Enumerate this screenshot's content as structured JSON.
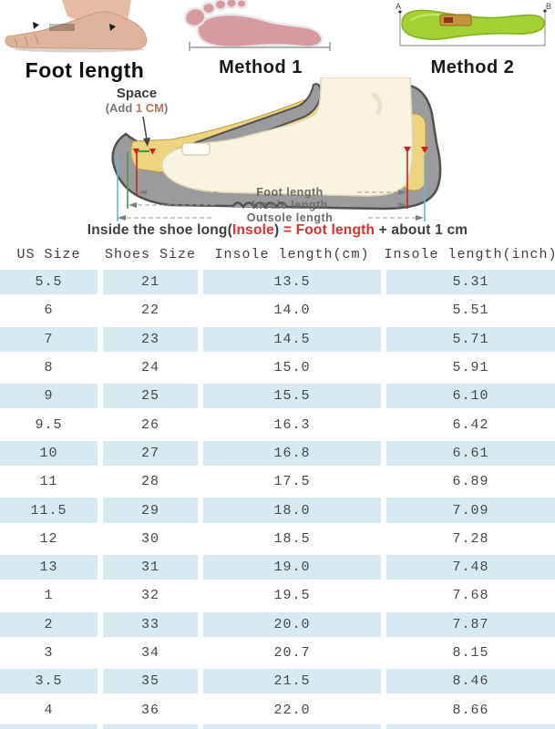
{
  "top_row": {
    "foot_photo_label": "Foot length",
    "method1_label": "Method 1",
    "method2_label": "Method 2",
    "method2_marker_a": "A",
    "method2_marker_b": "B"
  },
  "diagram": {
    "space": {
      "title": "Space",
      "prefix": "(Add ",
      "highlight": "1 CM",
      "suffix": ")"
    },
    "measure_labels": [
      "Foot length",
      "Insole length",
      "Outsole length"
    ],
    "formula": {
      "part1": "Inside the shoe long(",
      "insole": "Insole",
      "part2": ") ",
      "equals": "= ",
      "foot_length": "Foot length",
      "part3": " + about 1 cm"
    }
  },
  "table": {
    "headers": [
      "US Size",
      "Shoes Size",
      "Insole length(cm)",
      "Insole length(inch)"
    ],
    "rows": [
      [
        "5.5",
        "21",
        "13.5",
        "5.31"
      ],
      [
        "6",
        "22",
        "14.0",
        "5.51"
      ],
      [
        "7",
        "23",
        "14.5",
        "5.71"
      ],
      [
        "8",
        "24",
        "15.0",
        "5.91"
      ],
      [
        "9",
        "25",
        "15.5",
        "6.10"
      ],
      [
        "9.5",
        "26",
        "16.3",
        "6.42"
      ],
      [
        "10",
        "27",
        "16.8",
        "6.61"
      ],
      [
        "11",
        "28",
        "17.5",
        "6.89"
      ],
      [
        "11.5",
        "29",
        "18.0",
        "7.09"
      ],
      [
        "12",
        "30",
        "18.5",
        "7.28"
      ],
      [
        "13",
        "31",
        "19.0",
        "7.48"
      ],
      [
        "1",
        "32",
        "19.5",
        "7.68"
      ],
      [
        "2",
        "33",
        "20.0",
        "7.87"
      ],
      [
        "3",
        "34",
        "20.7",
        "8.15"
      ],
      [
        "3.5",
        "35",
        "21.5",
        "8.46"
      ],
      [
        "4",
        "36",
        "22.0",
        "8.66"
      ]
    ]
  },
  "colors": {
    "row_highlight_blue": "#d7e9f1",
    "accent_red": "#d23430",
    "insole_green": "#a3d032",
    "footprint_pink": "#d79aa0",
    "shoe_gray": "#9b9b9d",
    "insole_yellow": "#eed47e",
    "foot_cream": "#f8f4e0"
  },
  "chart_data": {
    "type": "table",
    "columns": [
      "US Size",
      "Shoes Size",
      "Insole length(cm)",
      "Insole length(inch)"
    ],
    "rows": [
      [
        "5.5",
        "21",
        "13.5",
        "5.31"
      ],
      [
        "6",
        "22",
        "14.0",
        "5.51"
      ],
      [
        "7",
        "23",
        "14.5",
        "5.71"
      ],
      [
        "8",
        "24",
        "15.0",
        "5.91"
      ],
      [
        "9",
        "25",
        "15.5",
        "6.10"
      ],
      [
        "9.5",
        "26",
        "16.3",
        "6.42"
      ],
      [
        "10",
        "27",
        "16.8",
        "6.61"
      ],
      [
        "11",
        "28",
        "17.5",
        "6.89"
      ],
      [
        "11.5",
        "29",
        "18.0",
        "7.09"
      ],
      [
        "12",
        "30",
        "18.5",
        "7.28"
      ],
      [
        "13",
        "31",
        "19.0",
        "7.48"
      ],
      [
        "1",
        "32",
        "19.5",
        "7.68"
      ],
      [
        "2",
        "33",
        "20.0",
        "7.87"
      ],
      [
        "3",
        "34",
        "20.7",
        "8.15"
      ],
      [
        "3.5",
        "35",
        "21.5",
        "8.46"
      ],
      [
        "4",
        "36",
        "22.0",
        "8.66"
      ]
    ],
    "notes": "Inside the shoe long(Insole) = Foot length + about 1 cm; alternating rows highlighted light blue"
  }
}
